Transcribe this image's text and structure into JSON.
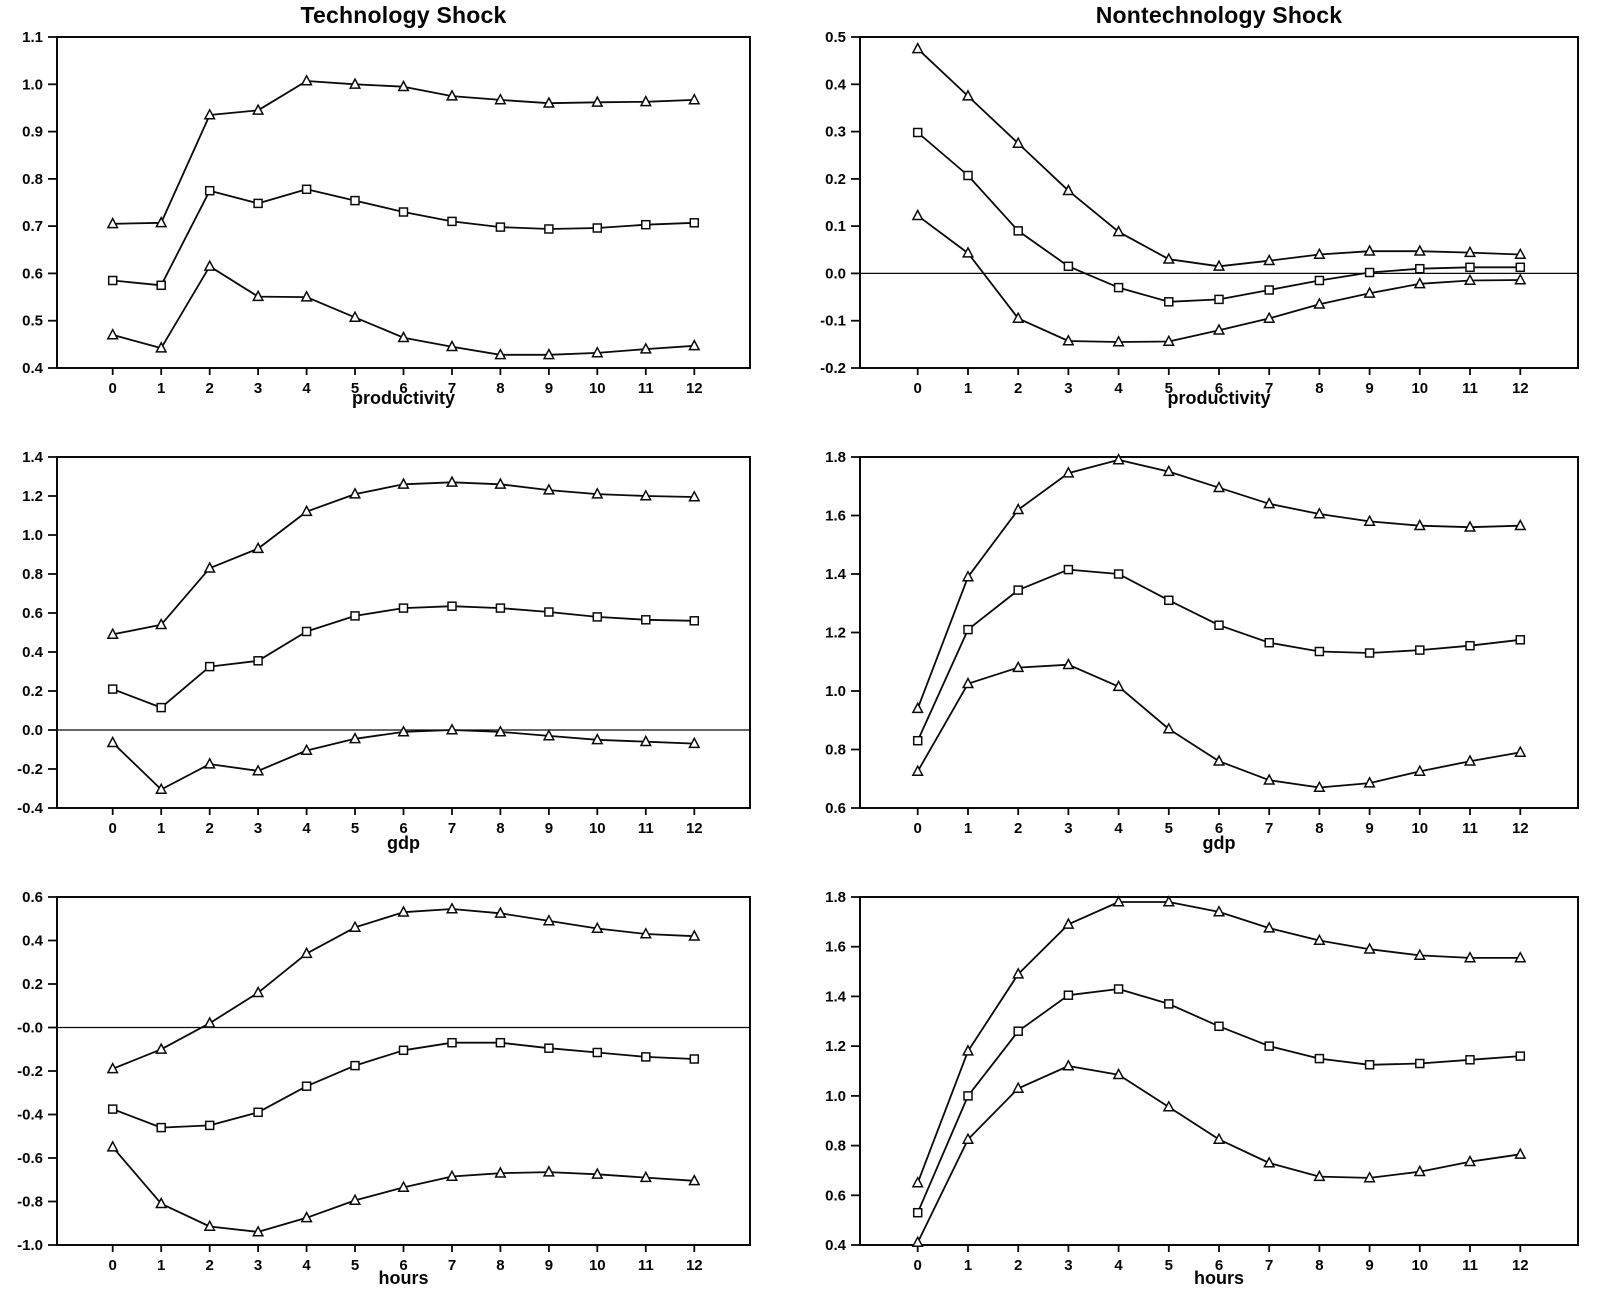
{
  "page": {
    "background": "#ffffff",
    "ink": "#0a0a0a",
    "xlim": [
      -1.15,
      13.15
    ]
  },
  "chart_data": [
    {
      "type": "line",
      "title": "Technology Shock",
      "xlabel": "productivity",
      "x": [
        0,
        1,
        2,
        3,
        4,
        5,
        6,
        7,
        8,
        9,
        10,
        11,
        12
      ],
      "xtick_labels": [
        "0",
        "1",
        "2",
        "3",
        "4",
        "5",
        "6",
        "7",
        "8",
        "9",
        "10",
        "11",
        "12"
      ],
      "ylim": [
        0.4,
        1.1
      ],
      "yticks": [
        0.4,
        0.5,
        0.6,
        0.7,
        0.8,
        0.9,
        1.0,
        1.1
      ],
      "ytick_labels": [
        "0.4",
        "0.5",
        "0.6",
        "0.7",
        "0.8",
        "0.9",
        "1.0",
        "1.1"
      ],
      "zero_line": false,
      "legend": "none",
      "series": [
        {
          "name": "upper-band",
          "marker": "triangle",
          "values": [
            0.705,
            0.707,
            0.935,
            0.945,
            1.007,
            1.0,
            0.995,
            0.975,
            0.967,
            0.96,
            0.962,
            0.963,
            0.967
          ]
        },
        {
          "name": "point-estimate",
          "marker": "square",
          "values": [
            0.585,
            0.575,
            0.775,
            0.748,
            0.778,
            0.754,
            0.73,
            0.71,
            0.698,
            0.694,
            0.696,
            0.703,
            0.707
          ]
        },
        {
          "name": "lower-band",
          "marker": "triangle",
          "values": [
            0.47,
            0.442,
            0.615,
            0.551,
            0.55,
            0.507,
            0.464,
            0.445,
            0.428,
            0.428,
            0.432,
            0.44,
            0.447
          ]
        }
      ]
    },
    {
      "type": "line",
      "title": "Nontechnology Shock",
      "xlabel": "productivity",
      "x": [
        0,
        1,
        2,
        3,
        4,
        5,
        6,
        7,
        8,
        9,
        10,
        11,
        12
      ],
      "xtick_labels": [
        "0",
        "1",
        "2",
        "3",
        "4",
        "5",
        "6",
        "7",
        "8",
        "9",
        "10",
        "11",
        "12"
      ],
      "ylim": [
        -0.2,
        0.5
      ],
      "yticks": [
        -0.2,
        -0.1,
        0.0,
        0.1,
        0.2,
        0.3,
        0.4,
        0.5
      ],
      "ytick_labels": [
        "-0.2",
        "-0.1",
        "0.0",
        "0.1",
        "0.2",
        "0.3",
        "0.4",
        "0.5"
      ],
      "zero_line": true,
      "legend": "none",
      "series": [
        {
          "name": "upper-band",
          "marker": "triangle",
          "values": [
            0.475,
            0.375,
            0.275,
            0.175,
            0.088,
            0.03,
            0.015,
            0.027,
            0.04,
            0.047,
            0.047,
            0.044,
            0.04
          ]
        },
        {
          "name": "point-estimate",
          "marker": "square",
          "values": [
            0.298,
            0.207,
            0.09,
            0.015,
            -0.03,
            -0.06,
            -0.055,
            -0.035,
            -0.015,
            0.002,
            0.01,
            0.013,
            0.013
          ]
        },
        {
          "name": "lower-band",
          "marker": "triangle",
          "values": [
            0.122,
            0.043,
            -0.095,
            -0.143,
            -0.145,
            -0.144,
            -0.12,
            -0.095,
            -0.065,
            -0.042,
            -0.022,
            -0.015,
            -0.014
          ]
        }
      ]
    },
    {
      "type": "line",
      "title": "",
      "xlabel": "gdp",
      "x": [
        0,
        1,
        2,
        3,
        4,
        5,
        6,
        7,
        8,
        9,
        10,
        11,
        12
      ],
      "xtick_labels": [
        "0",
        "1",
        "2",
        "3",
        "4",
        "5",
        "6",
        "7",
        "8",
        "9",
        "10",
        "11",
        "12"
      ],
      "ylim": [
        -0.4,
        1.4
      ],
      "yticks": [
        -0.4,
        -0.2,
        0.0,
        0.2,
        0.4,
        0.6,
        0.8,
        1.0,
        1.2,
        1.4
      ],
      "ytick_labels": [
        "-0.4",
        "-0.2",
        "0.0",
        "0.2",
        "0.4",
        "0.6",
        "0.8",
        "1.0",
        "1.2",
        "1.4"
      ],
      "zero_line": true,
      "legend": "none",
      "series": [
        {
          "name": "upper-band",
          "marker": "triangle",
          "values": [
            0.49,
            0.54,
            0.83,
            0.93,
            1.12,
            1.21,
            1.26,
            1.27,
            1.26,
            1.23,
            1.21,
            1.2,
            1.195
          ]
        },
        {
          "name": "point-estimate",
          "marker": "square",
          "values": [
            0.21,
            0.115,
            0.325,
            0.355,
            0.505,
            0.585,
            0.625,
            0.635,
            0.625,
            0.605,
            0.58,
            0.565,
            0.56
          ]
        },
        {
          "name": "lower-band",
          "marker": "triangle",
          "values": [
            -0.065,
            -0.305,
            -0.175,
            -0.21,
            -0.105,
            -0.045,
            -0.01,
            0.0,
            -0.01,
            -0.03,
            -0.05,
            -0.06,
            -0.07
          ]
        }
      ]
    },
    {
      "type": "line",
      "title": "",
      "xlabel": "gdp",
      "x": [
        0,
        1,
        2,
        3,
        4,
        5,
        6,
        7,
        8,
        9,
        10,
        11,
        12
      ],
      "xtick_labels": [
        "0",
        "1",
        "2",
        "3",
        "4",
        "5",
        "6",
        "7",
        "8",
        "9",
        "10",
        "11",
        "12"
      ],
      "ylim": [
        0.6,
        1.8
      ],
      "yticks": [
        0.6,
        0.8,
        1.0,
        1.2,
        1.4,
        1.6,
        1.8
      ],
      "ytick_labels": [
        "0.6",
        "0.8",
        "1.0",
        "1.2",
        "1.4",
        "1.6",
        "1.8"
      ],
      "zero_line": false,
      "legend": "none",
      "series": [
        {
          "name": "upper-band",
          "marker": "triangle",
          "values": [
            0.94,
            1.39,
            1.62,
            1.745,
            1.79,
            1.75,
            1.695,
            1.64,
            1.605,
            1.58,
            1.565,
            1.56,
            1.565
          ]
        },
        {
          "name": "point-estimate",
          "marker": "square",
          "values": [
            0.83,
            1.21,
            1.345,
            1.415,
            1.4,
            1.31,
            1.225,
            1.165,
            1.135,
            1.13,
            1.14,
            1.155,
            1.175
          ]
        },
        {
          "name": "lower-band",
          "marker": "triangle",
          "values": [
            0.725,
            1.025,
            1.08,
            1.09,
            1.015,
            0.87,
            0.76,
            0.695,
            0.67,
            0.685,
            0.725,
            0.76,
            0.79
          ]
        }
      ]
    },
    {
      "type": "line",
      "title": "",
      "xlabel": "hours",
      "x": [
        0,
        1,
        2,
        3,
        4,
        5,
        6,
        7,
        8,
        9,
        10,
        11,
        12
      ],
      "xtick_labels": [
        "0",
        "1",
        "2",
        "3",
        "4",
        "5",
        "6",
        "7",
        "8",
        "9",
        "10",
        "11",
        "12"
      ],
      "ylim": [
        -1.0,
        0.6
      ],
      "yticks": [
        -1.0,
        -0.8,
        -0.6,
        -0.4,
        -0.2,
        0.0,
        0.2,
        0.4,
        0.6
      ],
      "ytick_labels": [
        "-1.0",
        "-0.8",
        "-0.6",
        "-0.4",
        "-0.2",
        "-0.0",
        "0.2",
        "0.4",
        "0.6"
      ],
      "zero_line": true,
      "legend": "none",
      "series": [
        {
          "name": "upper-band",
          "marker": "triangle",
          "values": [
            -0.19,
            -0.1,
            0.02,
            0.16,
            0.34,
            0.46,
            0.53,
            0.545,
            0.525,
            0.49,
            0.455,
            0.43,
            0.42
          ]
        },
        {
          "name": "point-estimate",
          "marker": "square",
          "values": [
            -0.375,
            -0.46,
            -0.45,
            -0.39,
            -0.27,
            -0.175,
            -0.105,
            -0.07,
            -0.07,
            -0.095,
            -0.115,
            -0.135,
            -0.145
          ]
        },
        {
          "name": "lower-band",
          "marker": "triangle",
          "values": [
            -0.55,
            -0.81,
            -0.915,
            -0.94,
            -0.875,
            -0.795,
            -0.735,
            -0.685,
            -0.67,
            -0.665,
            -0.675,
            -0.69,
            -0.705
          ]
        }
      ]
    },
    {
      "type": "line",
      "title": "",
      "xlabel": "hours",
      "x": [
        0,
        1,
        2,
        3,
        4,
        5,
        6,
        7,
        8,
        9,
        10,
        11,
        12
      ],
      "xtick_labels": [
        "0",
        "1",
        "2",
        "3",
        "4",
        "5",
        "6",
        "7",
        "8",
        "9",
        "10",
        "11",
        "12"
      ],
      "ylim": [
        0.4,
        1.8
      ],
      "yticks": [
        0.4,
        0.6,
        0.8,
        1.0,
        1.2,
        1.4,
        1.6,
        1.8
      ],
      "ytick_labels": [
        "0.4",
        "0.6",
        "0.8",
        "1.0",
        "1.2",
        "1.4",
        "1.6",
        "1.8"
      ],
      "zero_line": false,
      "legend": "none",
      "series": [
        {
          "name": "upper-band",
          "marker": "triangle",
          "values": [
            0.65,
            1.18,
            1.49,
            1.69,
            1.78,
            1.78,
            1.74,
            1.675,
            1.625,
            1.59,
            1.565,
            1.555,
            1.555
          ]
        },
        {
          "name": "point-estimate",
          "marker": "square",
          "values": [
            0.53,
            1.0,
            1.26,
            1.405,
            1.43,
            1.37,
            1.28,
            1.2,
            1.15,
            1.125,
            1.13,
            1.145,
            1.16
          ]
        },
        {
          "name": "lower-band",
          "marker": "triangle",
          "values": [
            0.41,
            0.825,
            1.03,
            1.12,
            1.085,
            0.955,
            0.825,
            0.73,
            0.675,
            0.67,
            0.695,
            0.735,
            0.765
          ]
        }
      ]
    }
  ]
}
